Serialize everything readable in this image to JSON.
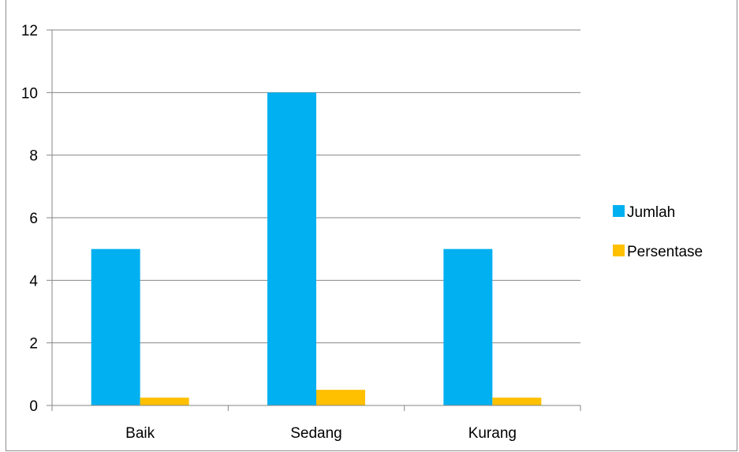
{
  "chart_data": {
    "type": "bar",
    "title": "",
    "xlabel": "",
    "ylabel": "",
    "categories": [
      "Baik",
      "Sedang",
      "Kurang"
    ],
    "series": [
      {
        "name": "Jumlah",
        "values": [
          5,
          10,
          5
        ],
        "color": "#00b0f0"
      },
      {
        "name": "Persentase",
        "values": [
          0.25,
          0.5,
          0.25
        ],
        "color": "#ffc000"
      }
    ],
    "ylim": [
      0,
      12
    ],
    "yticks": [
      "0",
      "2",
      "4",
      "6",
      "8",
      "10",
      "12"
    ],
    "grid": true,
    "legend_position": "right"
  }
}
